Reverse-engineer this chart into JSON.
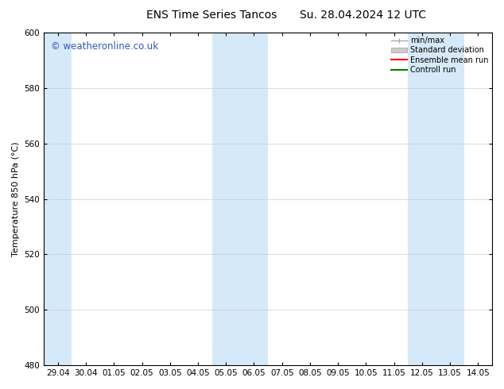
{
  "title_left": "ENS Time Series Tancos",
  "title_right": "Su. 28.04.2024 12 UTC",
  "ylabel": "Temperature 850 hPa (°C)",
  "ylim": [
    480,
    600
  ],
  "yticks": [
    480,
    500,
    520,
    540,
    560,
    580,
    600
  ],
  "xtick_labels": [
    "29.04",
    "30.04",
    "01.05",
    "02.05",
    "03.05",
    "04.05",
    "05.05",
    "06.05",
    "07.05",
    "08.05",
    "09.05",
    "10.05",
    "11.05",
    "12.05",
    "13.05",
    "14.05"
  ],
  "band_color": "#d6e9f8",
  "band_ranges": [
    [
      -0.5,
      0.5
    ],
    [
      5.5,
      7.5
    ],
    [
      12.5,
      14.5
    ]
  ],
  "background_color": "#ffffff",
  "plot_bg_color": "#ffffff",
  "grid_color": "#cccccc",
  "legend_items": [
    {
      "label": "min/max",
      "color": "#aaaaaa"
    },
    {
      "label": "Standard deviation",
      "color": "#cccccc"
    },
    {
      "label": "Ensemble mean run",
      "color": "#ff0000"
    },
    {
      "label": "Controll run",
      "color": "#008000"
    }
  ],
  "watermark_text": "© weatheronline.co.uk",
  "watermark_color": "#3355bb",
  "title_fontsize": 10,
  "tick_fontsize": 7.5,
  "ylabel_fontsize": 8,
  "watermark_fontsize": 8.5,
  "legend_fontsize": 7
}
